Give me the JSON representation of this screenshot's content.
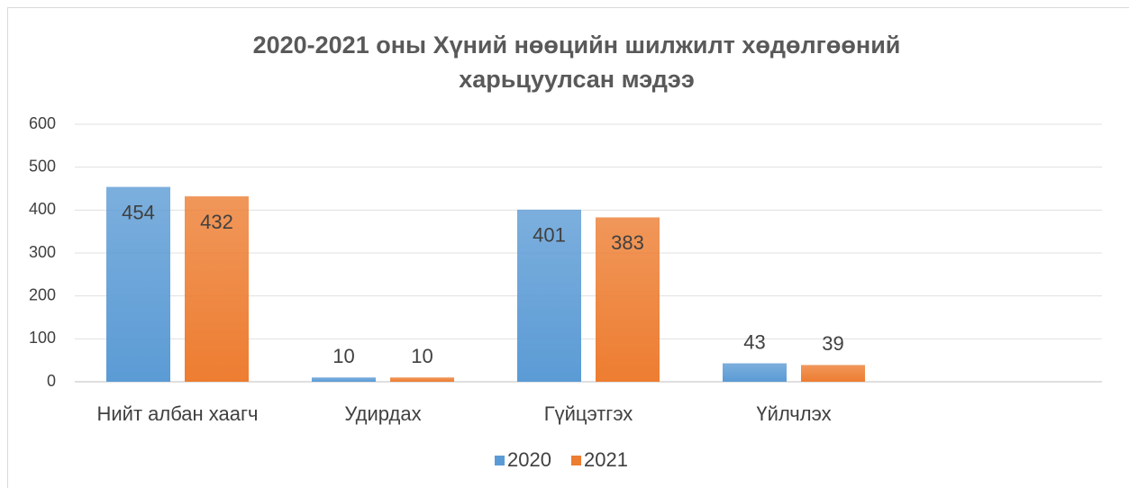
{
  "chart_data": {
    "type": "bar",
    "title": [
      "2020-2021 оны Хүний нөөцийн шилжилт хөдөлгөөний",
      "харьцуулсан мэдээ"
    ],
    "categories": [
      "Нийт албан хаагч",
      "Удирдах",
      "Гүйцэтгэх",
      "Үйлчлэх",
      null
    ],
    "series": [
      {
        "name": "2020",
        "color": "#5b9bd5",
        "values": [
          454,
          10,
          401,
          43,
          null
        ]
      },
      {
        "name": "2021",
        "color": "#ed7d31",
        "values": [
          432,
          10,
          383,
          39,
          null
        ]
      }
    ],
    "ylim": [
      0,
      600
    ],
    "yticks": [
      0,
      100,
      200,
      300,
      400,
      500,
      600
    ],
    "grid": true,
    "legend": "bottom"
  }
}
